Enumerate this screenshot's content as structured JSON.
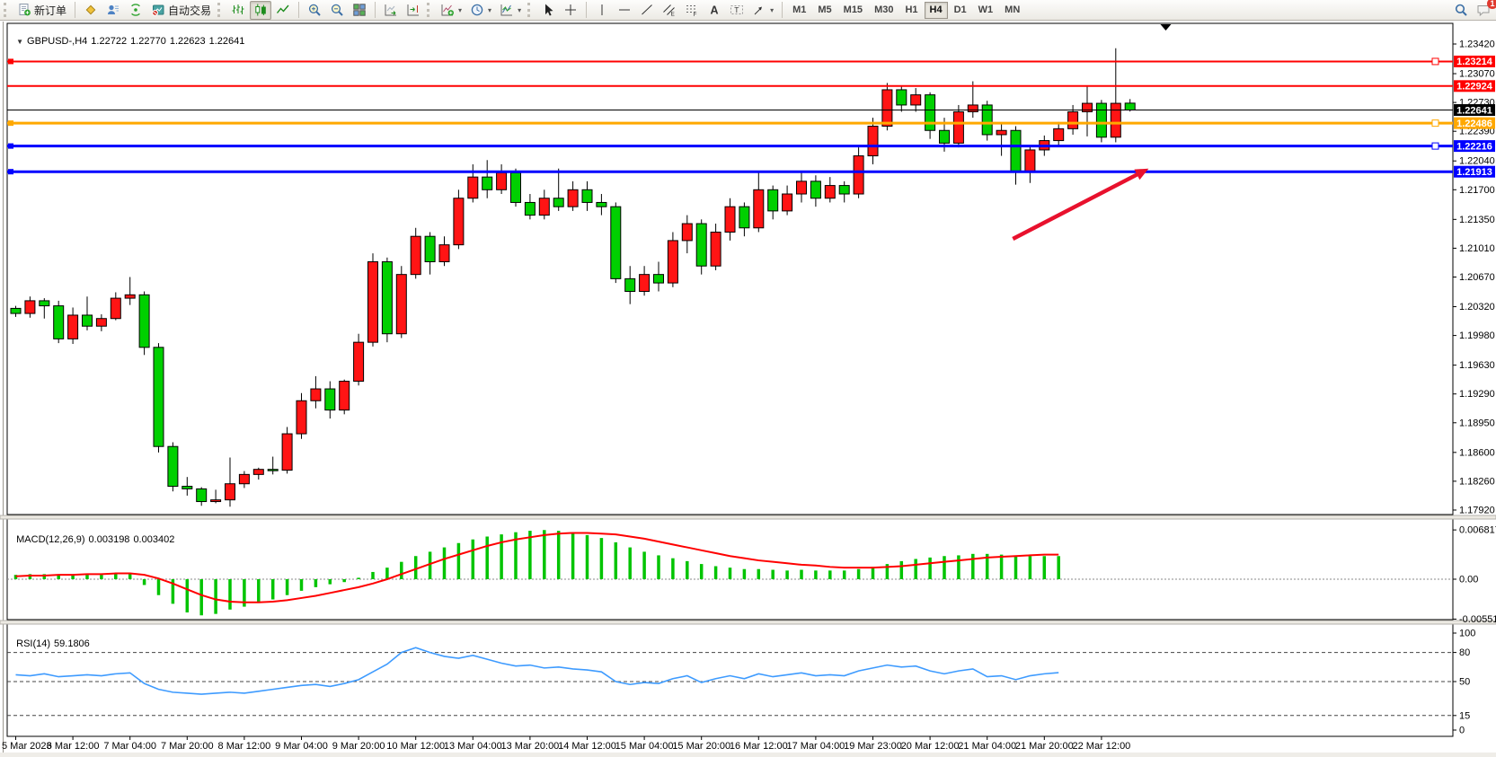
{
  "toolbar": {
    "new_order_label": "新订单",
    "autotrade_label": "自动交易",
    "timeframes": [
      "M1",
      "M5",
      "M15",
      "M30",
      "H1",
      "H4",
      "D1",
      "W1",
      "MN"
    ],
    "active_timeframe": "H4",
    "notification_count": "1",
    "groups": [
      [
        {
          "name": "new-order-button",
          "icon": "new-order-icon",
          "label": "新订单"
        }
      ],
      [
        {
          "name": "profile-button",
          "icon": "gold-diamond-icon"
        },
        {
          "name": "market-depth-button",
          "icon": "person-chart-icon"
        },
        {
          "name": "signals-button",
          "icon": "signal-icon"
        },
        {
          "name": "autotrade-button",
          "icon": "autotrade-icon",
          "label": "自动交易"
        }
      ],
      [
        {
          "name": "bars-mode-button",
          "icon": "bar-chart-icon"
        },
        {
          "name": "candles-mode-button",
          "icon": "candlestick-icon",
          "pressed": true
        },
        {
          "name": "line-mode-button",
          "icon": "line-chart-icon"
        }
      ],
      [
        {
          "name": "zoom-in-button",
          "icon": "zoom-in-icon"
        },
        {
          "name": "zoom-out-button",
          "icon": "zoom-out-icon"
        },
        {
          "name": "tile-windows-button",
          "icon": "tile-windows-icon"
        }
      ],
      [
        {
          "name": "auto-scroll-button",
          "icon": "auto-scroll-icon"
        },
        {
          "name": "chart-shift-button",
          "icon": "chart-shift-icon"
        }
      ],
      [
        {
          "name": "indicators-button",
          "icon": "add-indicator-icon",
          "caret": true
        },
        {
          "name": "periods-button",
          "icon": "clock-icon",
          "caret": true
        },
        {
          "name": "templates-button",
          "icon": "template-icon",
          "caret": true
        }
      ],
      [
        {
          "name": "cursor-button",
          "icon": "cursor-icon"
        },
        {
          "name": "crosshair-button",
          "icon": "crosshair-icon"
        }
      ],
      [
        {
          "name": "vertical-line-button",
          "icon": "vline-icon"
        },
        {
          "name": "horizontal-line-button",
          "icon": "hline-icon"
        },
        {
          "name": "trendline-button",
          "icon": "trendline-icon"
        },
        {
          "name": "channel-button",
          "icon": "channel-icon"
        },
        {
          "name": "fibonacci-button",
          "icon": "fibonacci-icon"
        },
        {
          "name": "text-button",
          "icon": "text-icon"
        },
        {
          "name": "text-label-button",
          "icon": "text-label-icon"
        },
        {
          "name": "arrows-button",
          "icon": "arrow-object-icon",
          "caret": true
        }
      ]
    ]
  },
  "symbol_bar": {
    "expander": "▼",
    "symbol": "GBPUSD-,H4",
    "open": "1.22722",
    "high": "1.22770",
    "low": "1.22623",
    "close": "1.22641"
  },
  "chart_data": {
    "type": "candlestick",
    "symbol": "GBPUSD",
    "timeframe": "H4",
    "bull_color": "#ff1414",
    "bear_color": "#00d000",
    "price_range": {
      "top": 1.2342,
      "bottom": 1.1792
    },
    "price_axis_ticks": [
      "1.23420",
      "1.23070",
      "1.22730",
      "1.22390",
      "1.22040",
      "1.21700",
      "1.21350",
      "1.21010",
      "1.20670",
      "1.20320",
      "1.19980",
      "1.19630",
      "1.19290",
      "1.18950",
      "1.18600",
      "1.18260",
      "1.17920"
    ],
    "time_ticks": [
      {
        "bar": 0,
        "label": "5 Mar 2023"
      },
      {
        "bar": 4,
        "label": "6 Mar 12:00"
      },
      {
        "bar": 8,
        "label": "7 Mar 04:00"
      },
      {
        "bar": 12,
        "label": "7 Mar 20:00"
      },
      {
        "bar": 16,
        "label": "8 Mar 12:00"
      },
      {
        "bar": 20,
        "label": "9 Mar 04:00"
      },
      {
        "bar": 24,
        "label": "9 Mar 20:00"
      },
      {
        "bar": 28,
        "label": "10 Mar 12:00"
      },
      {
        "bar": 32,
        "label": "13 Mar 04:00"
      },
      {
        "bar": 36,
        "label": "13 Mar 20:00"
      },
      {
        "bar": 40,
        "label": "14 Mar 12:00"
      },
      {
        "bar": 44,
        "label": "15 Mar 04:00"
      },
      {
        "bar": 48,
        "label": "15 Mar 20:00"
      },
      {
        "bar": 52,
        "label": "16 Mar 12:00"
      },
      {
        "bar": 56,
        "label": "17 Mar 04:00"
      },
      {
        "bar": 60,
        "label": "19 Mar 23:00"
      },
      {
        "bar": 64,
        "label": "20 Mar 12:00"
      },
      {
        "bar": 68,
        "label": "21 Mar 04:00"
      },
      {
        "bar": 72,
        "label": "21 Mar 20:00"
      },
      {
        "bar": 76,
        "label": "22 Mar 12:00"
      }
    ],
    "candles_ohlc": [
      [
        1.203,
        1.2033,
        1.202,
        1.2024
      ],
      [
        1.2024,
        1.2044,
        1.2019,
        1.2039
      ],
      [
        1.2039,
        1.2042,
        1.2018,
        1.2033
      ],
      [
        1.2033,
        1.2039,
        1.1989,
        1.1994
      ],
      [
        1.1994,
        1.2031,
        1.1988,
        1.2022
      ],
      [
        1.2022,
        1.2044,
        1.2004,
        1.2009
      ],
      [
        1.2009,
        1.2023,
        1.2003,
        1.2018
      ],
      [
        1.2018,
        1.2049,
        1.2016,
        1.2042
      ],
      [
        1.2042,
        1.2067,
        1.2034,
        1.2046
      ],
      [
        1.2046,
        1.205,
        1.1975,
        1.1984
      ],
      [
        1.1984,
        1.1989,
        1.186,
        1.1867
      ],
      [
        1.1867,
        1.1872,
        1.1814,
        1.182
      ],
      [
        1.182,
        1.1831,
        1.1809,
        1.1817
      ],
      [
        1.1817,
        1.1819,
        1.1797,
        1.1802
      ],
      [
        1.1802,
        1.1816,
        1.18,
        1.1804
      ],
      [
        1.1804,
        1.1854,
        1.1796,
        1.1823
      ],
      [
        1.1823,
        1.1838,
        1.1818,
        1.1834
      ],
      [
        1.1834,
        1.1842,
        1.1828,
        1.184
      ],
      [
        1.184,
        1.1855,
        1.1834,
        1.1839
      ],
      [
        1.1839,
        1.189,
        1.1835,
        1.1882
      ],
      [
        1.1882,
        1.193,
        1.1876,
        1.1921
      ],
      [
        1.1921,
        1.195,
        1.1912,
        1.1935
      ],
      [
        1.1935,
        1.1944,
        1.19,
        1.191
      ],
      [
        1.191,
        1.1946,
        1.1905,
        1.1944
      ],
      [
        1.1944,
        1.2,
        1.1939,
        1.199
      ],
      [
        1.199,
        1.2095,
        1.1985,
        1.2085
      ],
      [
        1.2085,
        1.209,
        1.199,
        1.2
      ],
      [
        1.2,
        1.208,
        1.1995,
        1.207
      ],
      [
        1.207,
        1.2125,
        1.2065,
        1.2115
      ],
      [
        1.2115,
        1.212,
        1.207,
        1.2085
      ],
      [
        1.2085,
        1.2115,
        1.208,
        1.2105
      ],
      [
        1.2105,
        1.217,
        1.21,
        1.216
      ],
      [
        1.216,
        1.22,
        1.2155,
        1.2185
      ],
      [
        1.2185,
        1.2205,
        1.216,
        1.217
      ],
      [
        1.217,
        1.22,
        1.2165,
        1.219
      ],
      [
        1.219,
        1.2195,
        1.215,
        1.2155
      ],
      [
        1.2155,
        1.2165,
        1.2135,
        1.214
      ],
      [
        1.214,
        1.217,
        1.2135,
        1.216
      ],
      [
        1.216,
        1.2195,
        1.2145,
        1.215
      ],
      [
        1.215,
        1.218,
        1.2145,
        1.217
      ],
      [
        1.217,
        1.218,
        1.2145,
        1.2155
      ],
      [
        1.2155,
        1.2165,
        1.214,
        1.215
      ],
      [
        1.215,
        1.2155,
        1.206,
        1.2065
      ],
      [
        1.2065,
        1.208,
        1.2035,
        1.205
      ],
      [
        1.205,
        1.208,
        1.2045,
        1.207
      ],
      [
        1.207,
        1.2085,
        1.205,
        1.206
      ],
      [
        1.206,
        1.212,
        1.2055,
        1.211
      ],
      [
        1.211,
        1.214,
        1.2095,
        1.213
      ],
      [
        1.213,
        1.2135,
        1.207,
        1.208
      ],
      [
        1.208,
        1.213,
        1.2075,
        1.212
      ],
      [
        1.212,
        1.216,
        1.211,
        1.215
      ],
      [
        1.215,
        1.2155,
        1.2115,
        1.2125
      ],
      [
        1.2125,
        1.219,
        1.212,
        1.217
      ],
      [
        1.217,
        1.2175,
        1.2135,
        1.2145
      ],
      [
        1.2145,
        1.2175,
        1.214,
        1.2165
      ],
      [
        1.2165,
        1.219,
        1.2155,
        1.218
      ],
      [
        1.218,
        1.2187,
        1.215,
        1.216
      ],
      [
        1.216,
        1.2185,
        1.2155,
        1.2175
      ],
      [
        1.2175,
        1.218,
        1.2155,
        1.2165
      ],
      [
        1.2165,
        1.222,
        1.216,
        1.221
      ],
      [
        1.221,
        1.2255,
        1.22,
        1.2245
      ],
      [
        1.2245,
        1.2296,
        1.224,
        1.2288
      ],
      [
        1.2288,
        1.2292,
        1.2262,
        1.227
      ],
      [
        1.227,
        1.229,
        1.2262,
        1.2282
      ],
      [
        1.2282,
        1.2285,
        1.223,
        1.224
      ],
      [
        1.224,
        1.2255,
        1.2215,
        1.2225
      ],
      [
        1.2225,
        1.227,
        1.222,
        1.2262
      ],
      [
        1.2262,
        1.2298,
        1.2255,
        1.227
      ],
      [
        1.227,
        1.2275,
        1.2228,
        1.2235
      ],
      [
        1.2235,
        1.2248,
        1.221,
        1.224
      ],
      [
        1.224,
        1.2245,
        1.2176,
        1.2192
      ],
      [
        1.2192,
        1.2222,
        1.2178,
        1.2217
      ],
      [
        1.2217,
        1.2234,
        1.221,
        1.2228
      ],
      [
        1.2228,
        1.225,
        1.2222,
        1.2242
      ],
      [
        1.2242,
        1.227,
        1.2235,
        1.2262
      ],
      [
        1.2262,
        1.2292,
        1.2233,
        1.2272
      ],
      [
        1.2272,
        1.2276,
        1.2226,
        1.2232
      ],
      [
        1.2232,
        1.2337,
        1.2226,
        1.2272
      ],
      [
        1.22722,
        1.2277,
        1.22623,
        1.22641
      ]
    ],
    "hlines": [
      {
        "label": "1.23214",
        "price": 1.23214,
        "color": "#ff0000",
        "thickness": 2,
        "left_handle": true,
        "right_handle": true
      },
      {
        "label": "1.22924",
        "price": 1.22924,
        "color": "#ff0000",
        "thickness": 2,
        "left_handle": false,
        "right_handle": false
      },
      {
        "label": "1.22486",
        "price": 1.22486,
        "color": "#ffa800",
        "thickness": 3,
        "left_handle": true,
        "right_handle": true
      },
      {
        "label": "1.22216",
        "price": 1.22216,
        "color": "#0000ff",
        "thickness": 3,
        "left_handle": true,
        "right_handle": true
      },
      {
        "label": "1.21913",
        "price": 1.21913,
        "color": "#0000ff",
        "thickness": 3,
        "left_handle": true,
        "right_handle": false
      }
    ],
    "current_price": {
      "label": "1.22641",
      "price": 1.22641,
      "color": "#000000"
    },
    "macd": {
      "label": "MACD(12,26,9)",
      "value_main": "0.003198",
      "value_signal": "0.003402",
      "axis_ticks": [
        "0.006817",
        "0.00",
        "-0.005518"
      ],
      "max": 0.006817,
      "min": -0.005518,
      "hist_color": "#00c400",
      "signal_color": "#ff0000",
      "histogram": [
        0.0006,
        0.0007,
        0.0007,
        0.0005,
        0.0005,
        0.0006,
        0.0006,
        0.0007,
        0.0008,
        -0.0008,
        -0.0022,
        -0.0034,
        -0.0046,
        -0.005,
        -0.0048,
        -0.0042,
        -0.0038,
        -0.0033,
        -0.0028,
        -0.0022,
        -0.0016,
        -0.0011,
        -0.0007,
        -0.0004,
        0.0002,
        0.001,
        0.0016,
        0.0024,
        0.0032,
        0.0038,
        0.0044,
        0.005,
        0.0055,
        0.0059,
        0.0062,
        0.0065,
        0.0067,
        0.0068,
        0.0067,
        0.0065,
        0.0061,
        0.0057,
        0.0051,
        0.0044,
        0.0038,
        0.0033,
        0.0029,
        0.0025,
        0.0021,
        0.0018,
        0.0016,
        0.0014,
        0.0014,
        0.0013,
        0.0012,
        0.0013,
        0.0012,
        0.0012,
        0.0012,
        0.0014,
        0.0017,
        0.0021,
        0.0025,
        0.0028,
        0.003,
        0.0032,
        0.0033,
        0.0035,
        0.0035,
        0.0034,
        0.0032,
        0.0032,
        0.0032,
        0.0032
      ],
      "signal": [
        0.0004,
        0.0005,
        0.0005,
        0.0006,
        0.0006,
        0.0007,
        0.0007,
        0.0008,
        0.0008,
        0.0006,
        0.0001,
        -0.0006,
        -0.0014,
        -0.0022,
        -0.0028,
        -0.0031,
        -0.0032,
        -0.0032,
        -0.0031,
        -0.0029,
        -0.0026,
        -0.0023,
        -0.0019,
        -0.0015,
        -0.0011,
        -0.0006,
        0.0,
        0.0007,
        0.0014,
        0.0021,
        0.0028,
        0.0034,
        0.004,
        0.0046,
        0.0051,
        0.0055,
        0.0058,
        0.0061,
        0.0063,
        0.0064,
        0.0064,
        0.0063,
        0.0062,
        0.0059,
        0.0056,
        0.0052,
        0.0048,
        0.0044,
        0.004,
        0.0036,
        0.0032,
        0.0029,
        0.0026,
        0.0024,
        0.0022,
        0.002,
        0.0019,
        0.0017,
        0.0016,
        0.0016,
        0.0016,
        0.0017,
        0.0018,
        0.002,
        0.0022,
        0.0024,
        0.0026,
        0.0028,
        0.003,
        0.0031,
        0.0032,
        0.0033,
        0.0034,
        0.0034
      ]
    },
    "rsi": {
      "label": "RSI(14)",
      "value": "59.1806",
      "axis_ticks": [
        "100",
        "80",
        "50",
        "15",
        "0"
      ],
      "levels": [
        80,
        50,
        15
      ],
      "line_color": "#3e9bff",
      "values": [
        57,
        56,
        58,
        55,
        56,
        57,
        56,
        58,
        59,
        48,
        42,
        39,
        38,
        37,
        38,
        39,
        38,
        40,
        42,
        44,
        46,
        47,
        45,
        48,
        52,
        60,
        68,
        80,
        85,
        80,
        76,
        74,
        77,
        73,
        69,
        66,
        67,
        64,
        65,
        63,
        62,
        60,
        50,
        47,
        49,
        48,
        53,
        56,
        49,
        53,
        56,
        53,
        58,
        55,
        57,
        59,
        56,
        57,
        56,
        61,
        64,
        67,
        65,
        66,
        61,
        58,
        61,
        63,
        55,
        56,
        52,
        56,
        58,
        59.18
      ]
    },
    "annotations": {
      "trend_arrow": {
        "from": {
          "bar": 69.8,
          "price": 1.2112
        },
        "to": {
          "bar": 79.3,
          "price": 1.2195
        },
        "color": "#e8112d"
      },
      "shift_marker_bar": 80.5
    }
  }
}
